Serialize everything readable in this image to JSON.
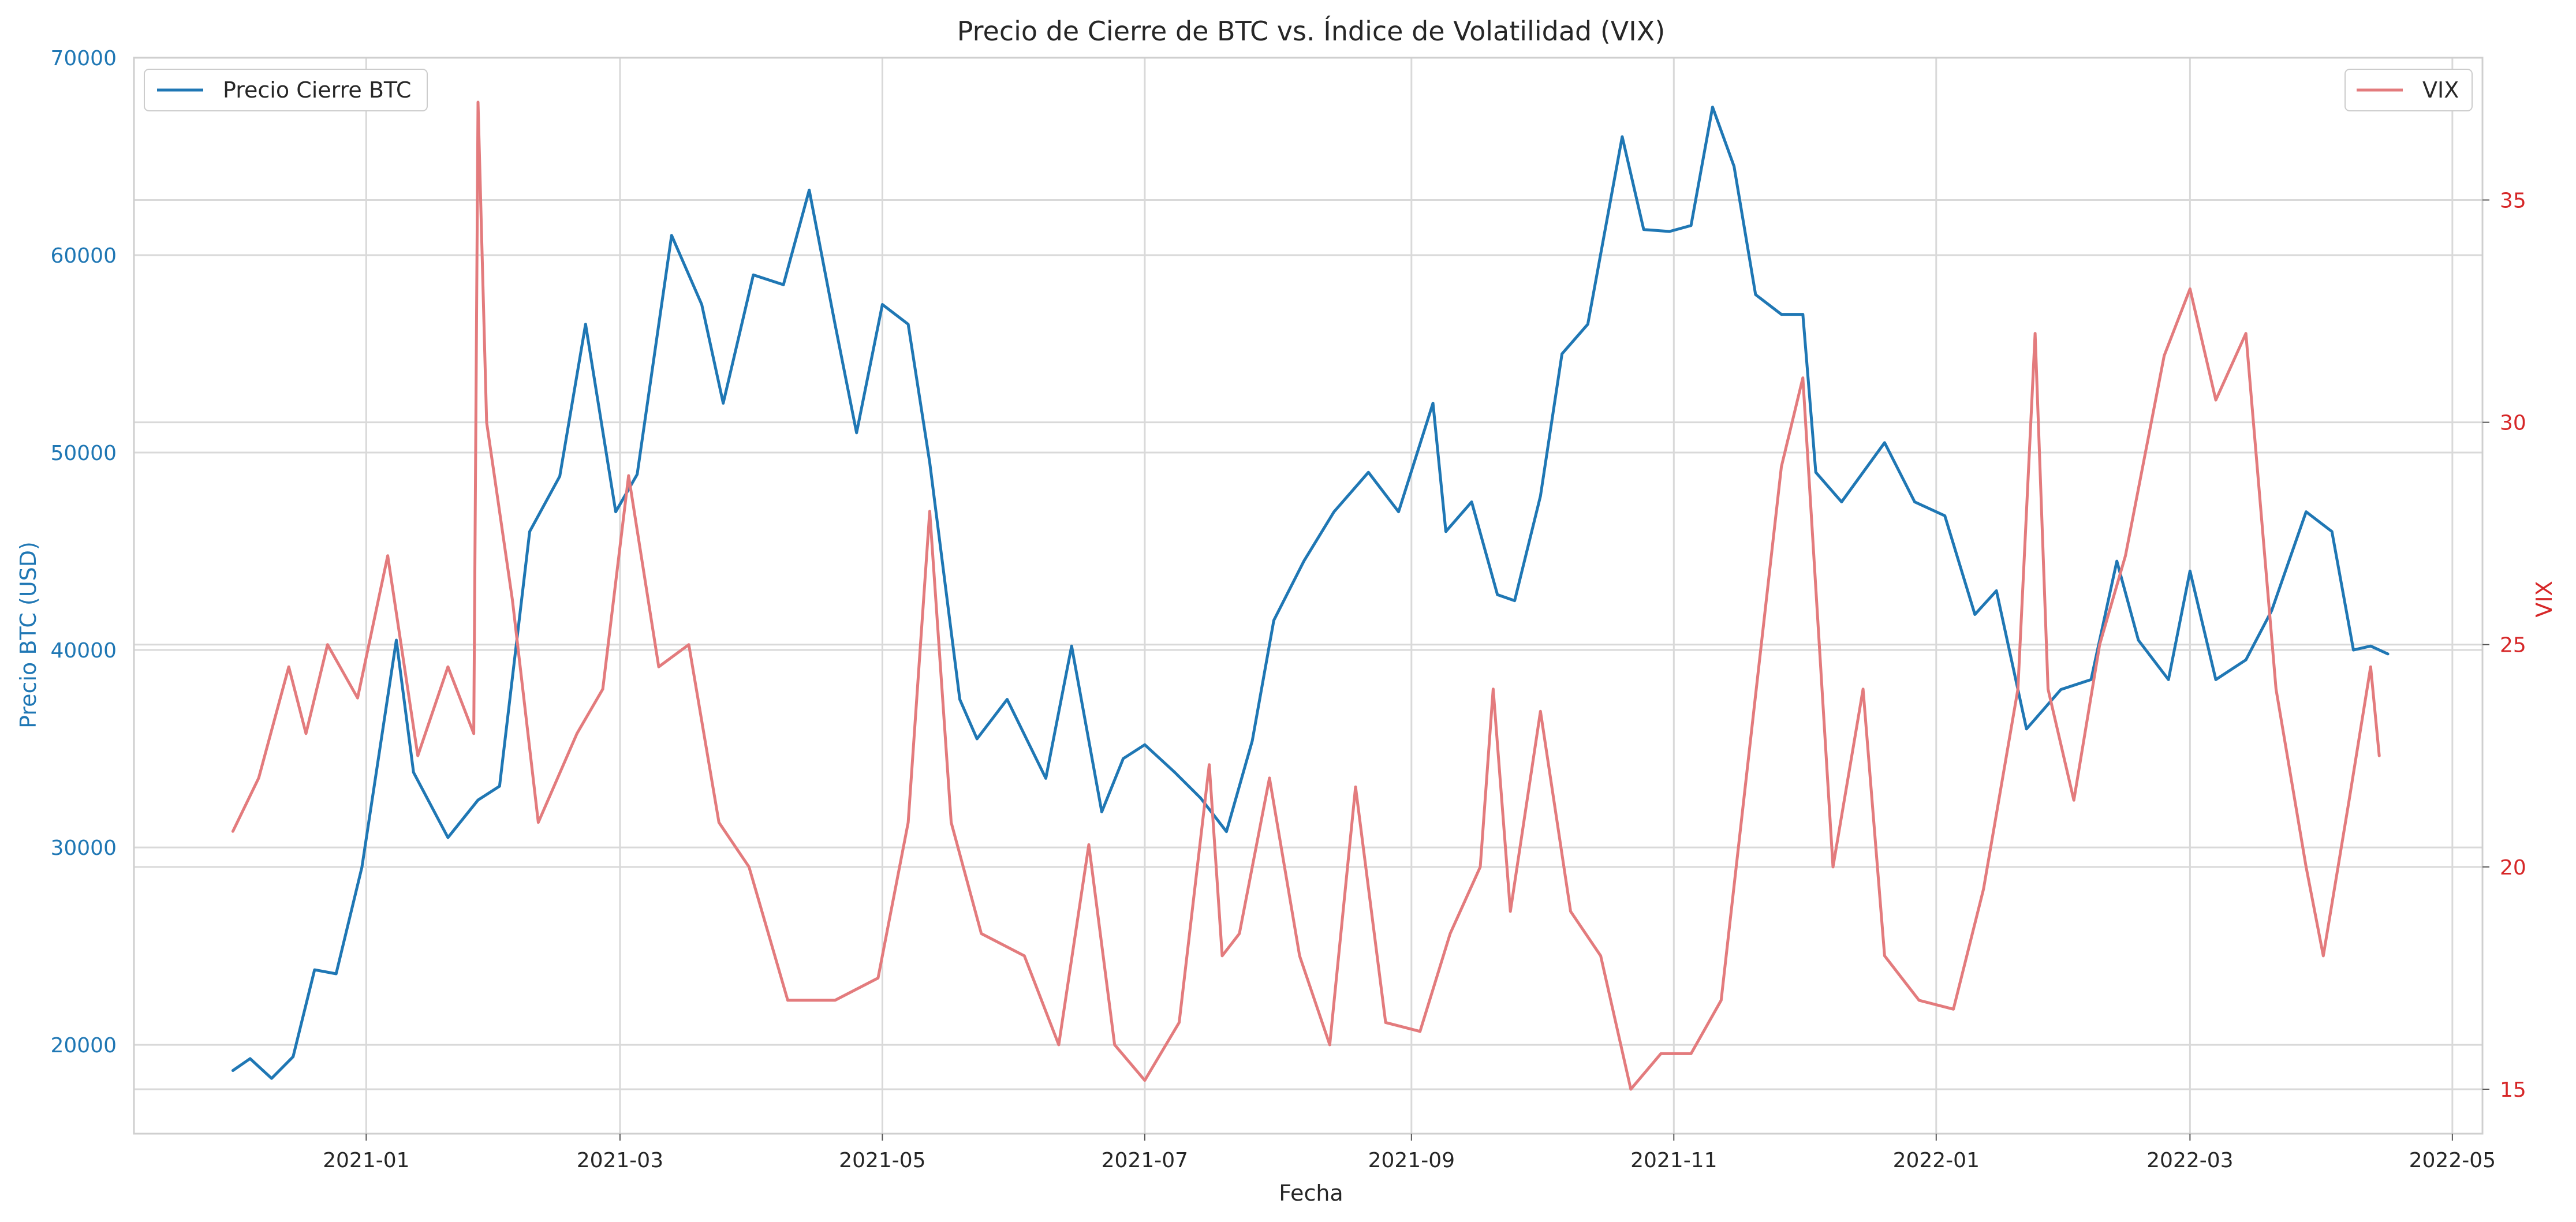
{
  "chart_data": {
    "type": "line",
    "title": "Precio de Cierre de BTC vs. Índice de Volatilidad (VIX)",
    "xlabel": "Fecha",
    "ylabel_left": "Precio BTC (USD)",
    "ylabel_right": "VIX",
    "xlim": [
      "2020-11-08",
      "2022-05-08"
    ],
    "ylim_left": [
      15500,
      70000
    ],
    "ylim_right": [
      14.0,
      38.2
    ],
    "x_ticks": [
      "2021-01",
      "2021-03",
      "2021-05",
      "2021-07",
      "2021-09",
      "2021-11",
      "2022-01",
      "2022-03",
      "2022-05"
    ],
    "y_ticks_left": [
      "20000",
      "30000",
      "40000",
      "50000",
      "60000",
      "70000"
    ],
    "y_ticks_right": [
      "15",
      "20",
      "25",
      "30",
      "35"
    ],
    "grid": true,
    "legend_left": {
      "placement": "top-left",
      "entry": "Precio Cierre BTC"
    },
    "legend_right": {
      "placement": "top-right",
      "entry": "VIX"
    },
    "colors": {
      "btc": "#1f77b4",
      "vix": "#e37b7d",
      "grid": "#d9d9d9",
      "vix_axis": "#d62728"
    },
    "series": [
      {
        "name": "Precio Cierre BTC",
        "axis": "left",
        "x": [
          "2020-12-01",
          "2020-12-05",
          "2020-12-10",
          "2020-12-15",
          "2020-12-20",
          "2020-12-25",
          "2020-12-31",
          "2021-01-08",
          "2021-01-12",
          "2021-01-20",
          "2021-01-27",
          "2021-02-01",
          "2021-02-08",
          "2021-02-15",
          "2021-02-21",
          "2021-02-28",
          "2021-03-05",
          "2021-03-13",
          "2021-03-20",
          "2021-03-25",
          "2021-04-01",
          "2021-04-08",
          "2021-04-14",
          "2021-04-20",
          "2021-04-25",
          "2021-05-01",
          "2021-05-07",
          "2021-05-12",
          "2021-05-19",
          "2021-05-23",
          "2021-05-30",
          "2021-06-08",
          "2021-06-14",
          "2021-06-21",
          "2021-06-26",
          "2021-07-01",
          "2021-07-08",
          "2021-07-14",
          "2021-07-20",
          "2021-07-26",
          "2021-07-31",
          "2021-08-07",
          "2021-08-14",
          "2021-08-22",
          "2021-08-29",
          "2021-09-06",
          "2021-09-09",
          "2021-09-15",
          "2021-09-21",
          "2021-09-25",
          "2021-10-01",
          "2021-10-06",
          "2021-10-12",
          "2021-10-20",
          "2021-10-25",
          "2021-10-31",
          "2021-11-05",
          "2021-11-10",
          "2021-11-15",
          "2021-11-20",
          "2021-11-26",
          "2021-12-01",
          "2021-12-04",
          "2021-12-10",
          "2021-12-20",
          "2021-12-27",
          "2022-01-03",
          "2022-01-10",
          "2022-01-15",
          "2022-01-22",
          "2022-01-30",
          "2022-02-06",
          "2022-02-12",
          "2022-02-17",
          "2022-02-24",
          "2022-03-01",
          "2022-03-07",
          "2022-03-14",
          "2022-03-20",
          "2022-03-28",
          "2022-04-03",
          "2022-04-08",
          "2022-04-12",
          "2022-04-16"
        ],
        "values": [
          18700,
          19300,
          18300,
          19400,
          23800,
          23600,
          29000,
          40500,
          33800,
          30500,
          32400,
          33100,
          46000,
          48800,
          56500,
          47000,
          48900,
          61000,
          57500,
          52500,
          59000,
          58500,
          63300,
          56500,
          51000,
          57500,
          56500,
          49500,
          37500,
          35500,
          37500,
          33500,
          40200,
          31800,
          34500,
          35200,
          33800,
          32500,
          30800,
          35400,
          41500,
          44500,
          47000,
          49000,
          47000,
          52500,
          46000,
          47500,
          42800,
          42500,
          47800,
          55000,
          56500,
          66000,
          61300,
          61200,
          61500,
          67500,
          64500,
          58000,
          57000,
          57000,
          49000,
          47500,
          50500,
          47500,
          46800,
          41800,
          43000,
          36000,
          38000,
          38500,
          44500,
          40500,
          38500,
          44000,
          38500,
          39500,
          42000,
          47000,
          46000,
          40000,
          40200,
          39800
        ]
      },
      {
        "name": "VIX",
        "axis": "right",
        "x": [
          "2020-12-01",
          "2020-12-07",
          "2020-12-14",
          "2020-12-18",
          "2020-12-23",
          "2020-12-30",
          "2021-01-06",
          "2021-01-13",
          "2021-01-20",
          "2021-01-26",
          "2021-01-27",
          "2021-01-29",
          "2021-02-04",
          "2021-02-10",
          "2021-02-19",
          "2021-02-25",
          "2021-03-03",
          "2021-03-10",
          "2021-03-17",
          "2021-03-24",
          "2021-03-31",
          "2021-04-09",
          "2021-04-20",
          "2021-04-30",
          "2021-05-07",
          "2021-05-12",
          "2021-05-17",
          "2021-05-24",
          "2021-06-03",
          "2021-06-11",
          "2021-06-18",
          "2021-06-24",
          "2021-07-01",
          "2021-07-09",
          "2021-07-16",
          "2021-07-19",
          "2021-07-23",
          "2021-07-30",
          "2021-08-06",
          "2021-08-13",
          "2021-08-19",
          "2021-08-26",
          "2021-09-03",
          "2021-09-10",
          "2021-09-17",
          "2021-09-20",
          "2021-09-24",
          "2021-10-01",
          "2021-10-08",
          "2021-10-15",
          "2021-10-22",
          "2021-10-29",
          "2021-11-05",
          "2021-11-12",
          "2021-11-19",
          "2021-11-26",
          "2021-12-01",
          "2021-12-08",
          "2021-12-15",
          "2021-12-20",
          "2021-12-28",
          "2022-01-05",
          "2022-01-12",
          "2022-01-20",
          "2022-01-24",
          "2022-01-27",
          "2022-02-02",
          "2022-02-08",
          "2022-02-14",
          "2022-02-23",
          "2022-03-01",
          "2022-03-07",
          "2022-03-14",
          "2022-03-21",
          "2022-03-28",
          "2022-04-01",
          "2022-04-07",
          "2022-04-12",
          "2022-04-14"
        ],
        "values": [
          20.8,
          22.0,
          24.5,
          23.0,
          25.0,
          23.8,
          27.0,
          22.5,
          24.5,
          23.0,
          37.2,
          30.0,
          26.0,
          21.0,
          23.0,
          24.0,
          28.8,
          24.5,
          25.0,
          21.0,
          20.0,
          17.0,
          17.0,
          17.5,
          21.0,
          28.0,
          21.0,
          18.5,
          18.0,
          16.0,
          20.5,
          16.0,
          15.2,
          16.5,
          22.3,
          18.0,
          18.5,
          22.0,
          18.0,
          16.0,
          21.8,
          16.5,
          16.3,
          18.5,
          20.0,
          24.0,
          19.0,
          23.5,
          19.0,
          18.0,
          15.0,
          15.8,
          15.8,
          17.0,
          23.0,
          29.0,
          31.0,
          20.0,
          24.0,
          18.0,
          17.0,
          16.8,
          19.5,
          24.0,
          32.0,
          24.0,
          21.5,
          25.0,
          27.0,
          31.5,
          33.0,
          30.5,
          32.0,
          24.0,
          20.0,
          18.0,
          21.5,
          24.5,
          22.5
        ]
      }
    ]
  }
}
